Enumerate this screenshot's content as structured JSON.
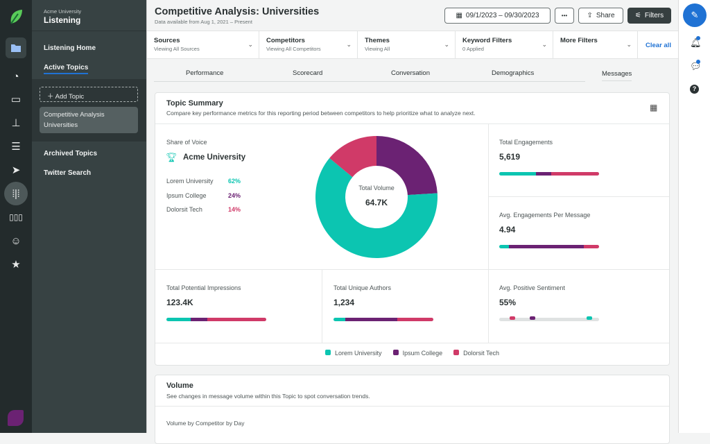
{
  "colors": {
    "lorem": "#0cc5b1",
    "ipsum": "#6b2273",
    "dolorsit": "#d03a68",
    "accent": "#1f72d4"
  },
  "nav": {
    "org": "Acme University",
    "app": "Listening",
    "items": [
      "Listening Home",
      "Active Topics"
    ],
    "add_topic": "Add Topic",
    "topic": "Competitive Analysis Universities",
    "items2": [
      "Archived Topics",
      "Twitter Search"
    ]
  },
  "header": {
    "title": "Competitive Analysis: Universities",
    "subtitle": "Data available from Aug 1, 2021 – Present",
    "date_range": "09/1/2023 – 09/30/2023",
    "more": "•••",
    "share": "Share",
    "filters": "Filters"
  },
  "filters": [
    {
      "title": "Sources",
      "sub": "Viewing All Sources"
    },
    {
      "title": "Competitors",
      "sub": "Viewing All Competitors"
    },
    {
      "title": "Themes",
      "sub": "Viewing All"
    },
    {
      "title": "Keyword Filters",
      "sub": "0 Applied"
    },
    {
      "title": "More Filters",
      "sub": ""
    }
  ],
  "clear_all": "Clear all",
  "tabs": [
    "Performance",
    "Scorecard",
    "Conversation",
    "Demographics",
    "Messages"
  ],
  "summary": {
    "title": "Topic Summary",
    "desc": "Compare key performance metrics for this reporting period between competitors to help prioritize what to analyze next.",
    "sov_label": "Share of Voice",
    "leader": "Acme University",
    "competitors": [
      {
        "name": "Lorem University",
        "pct": "62%",
        "share": 62
      },
      {
        "name": "Ipsum College",
        "pct": "24%",
        "share": 24
      },
      {
        "name": "Dolorsit Tech",
        "pct": "14%",
        "share": 14
      }
    ],
    "donut_label": "Total Volume",
    "donut_value": "64.7K",
    "metrics": [
      {
        "label": "Total Engagements",
        "value": "5,619",
        "split": [
          37,
          15,
          48
        ]
      },
      {
        "label": "Avg. Engagements Per Message",
        "value": "4.94",
        "split": [
          10,
          75,
          15
        ]
      },
      {
        "label": "Total Potential Impressions",
        "value": "123.4K",
        "split": [
          24,
          17,
          59
        ]
      },
      {
        "label": "Total Unique Authors",
        "value": "1,234",
        "split": [
          12,
          52,
          36
        ]
      },
      {
        "label": "Avg. Positive Sentiment",
        "value": "55%",
        "dots": [
          90,
          33,
          13
        ]
      }
    ],
    "legend": [
      "Lorem University",
      "Ipsum College",
      "Dolorsit Tech"
    ]
  },
  "volume": {
    "title": "Volume",
    "desc": "See changes in message volume within this Topic to spot conversation trends.",
    "sub": "Volume by Competitor by Day"
  }
}
